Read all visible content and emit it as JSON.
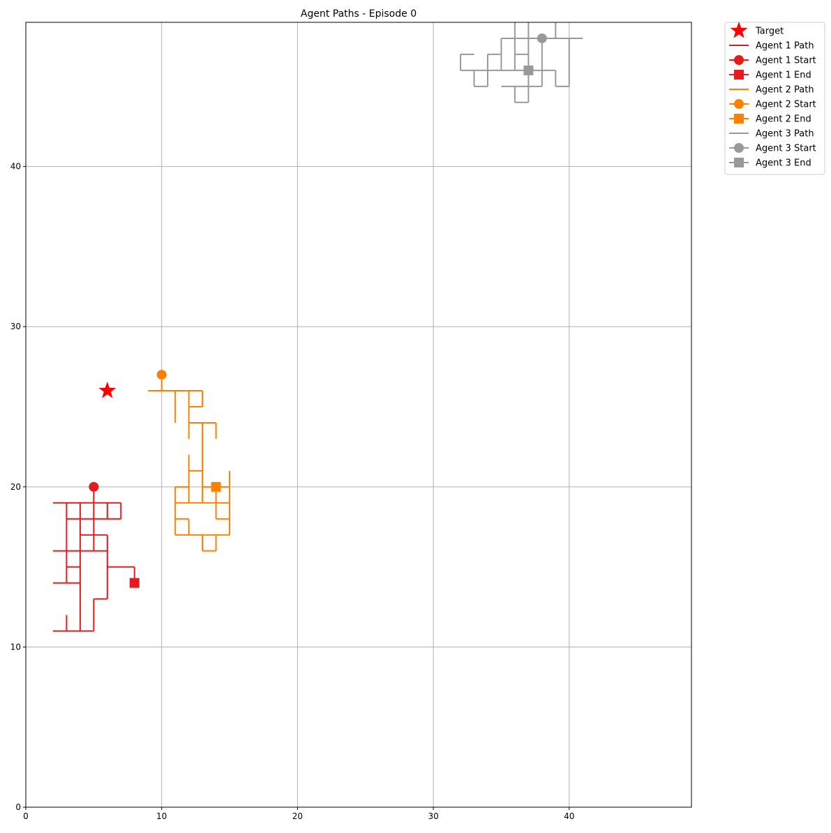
{
  "chart_data": {
    "type": "line",
    "title": "Agent Paths - Episode 0",
    "xlabel": "",
    "ylabel": "",
    "xlim": [
      0,
      49
    ],
    "ylim": [
      0,
      49
    ],
    "xticks": [
      0,
      10,
      20,
      30,
      40
    ],
    "yticks": [
      0,
      10,
      20,
      30,
      40
    ],
    "grid": true,
    "legend_position": "outside top-right",
    "target": {
      "label": "Target",
      "x": 6,
      "y": 26,
      "color": "#ff0000",
      "marker": "star"
    },
    "agents": [
      {
        "path_label": "Agent 1 Path",
        "start_label": "Agent 1 Start",
        "end_label": "Agent 1 End",
        "color": "#e41a1c",
        "start": [
          5,
          20
        ],
        "end": [
          8,
          14
        ],
        "segments": [
          [
            [
              5,
              20
            ],
            [
              5,
              19
            ]
          ],
          [
            [
              2,
              19
            ],
            [
              7,
              19
            ]
          ],
          [
            [
              7,
              19
            ],
            [
              7,
              18
            ]
          ],
          [
            [
              3,
              18
            ],
            [
              7,
              18
            ]
          ],
          [
            [
              3,
              19
            ],
            [
              3,
              14
            ]
          ],
          [
            [
              4,
              19
            ],
            [
              4,
              11
            ]
          ],
          [
            [
              5,
              19
            ],
            [
              5,
              16
            ]
          ],
          [
            [
              6,
              19
            ],
            [
              6,
              18
            ]
          ],
          [
            [
              4,
              17
            ],
            [
              6,
              17
            ]
          ],
          [
            [
              6,
              17
            ],
            [
              6,
              13
            ]
          ],
          [
            [
              2,
              16
            ],
            [
              6,
              16
            ]
          ],
          [
            [
              3,
              15
            ],
            [
              4,
              15
            ]
          ],
          [
            [
              6,
              15
            ],
            [
              8,
              15
            ]
          ],
          [
            [
              8,
              15
            ],
            [
              8,
              14
            ]
          ],
          [
            [
              2,
              14
            ],
            [
              4,
              14
            ]
          ],
          [
            [
              5,
              13
            ],
            [
              6,
              13
            ]
          ],
          [
            [
              5,
              13
            ],
            [
              5,
              11
            ]
          ],
          [
            [
              2,
              11
            ],
            [
              5,
              11
            ]
          ],
          [
            [
              3,
              12
            ],
            [
              3,
              11
            ]
          ]
        ]
      },
      {
        "path_label": "Agent 2 Path",
        "start_label": "Agent 2 Start",
        "end_label": "Agent 2 End",
        "color": "#ff7f00",
        "start": [
          10,
          27
        ],
        "end": [
          14,
          20
        ],
        "segments": [
          [
            [
              10,
              27
            ],
            [
              10,
              26
            ]
          ],
          [
            [
              9,
              26
            ],
            [
              13,
              26
            ]
          ],
          [
            [
              11,
              26
            ],
            [
              11,
              24
            ]
          ],
          [
            [
              12,
              26
            ],
            [
              12,
              23
            ]
          ],
          [
            [
              13,
              26
            ],
            [
              13,
              25
            ]
          ],
          [
            [
              12,
              25
            ],
            [
              13,
              25
            ]
          ],
          [
            [
              12,
              24
            ],
            [
              14,
              24
            ]
          ],
          [
            [
              13,
              24
            ],
            [
              13,
              19
            ]
          ],
          [
            [
              14,
              24
            ],
            [
              14,
              23
            ]
          ],
          [
            [
              12,
              22
            ],
            [
              12,
              19
            ]
          ],
          [
            [
              12,
              21
            ],
            [
              13,
              21
            ]
          ],
          [
            [
              11,
              20
            ],
            [
              12,
              20
            ]
          ],
          [
            [
              11,
              20
            ],
            [
              11,
              17
            ]
          ],
          [
            [
              13,
              20
            ],
            [
              15,
              20
            ]
          ],
          [
            [
              15,
              21
            ],
            [
              15,
              17
            ]
          ],
          [
            [
              11,
              19
            ],
            [
              15,
              19
            ]
          ],
          [
            [
              14,
              20
            ],
            [
              14,
              18
            ]
          ],
          [
            [
              14,
              18
            ],
            [
              15,
              18
            ]
          ],
          [
            [
              11,
              18
            ],
            [
              12,
              18
            ]
          ],
          [
            [
              12,
              18
            ],
            [
              12,
              17
            ]
          ],
          [
            [
              11,
              17
            ],
            [
              15,
              17
            ]
          ],
          [
            [
              13,
              17
            ],
            [
              13,
              16
            ]
          ],
          [
            [
              13,
              16
            ],
            [
              14,
              16
            ]
          ],
          [
            [
              14,
              16
            ],
            [
              14,
              17
            ]
          ]
        ]
      },
      {
        "path_label": "Agent 3 Path",
        "start_label": "Agent 3 Start",
        "end_label": "Agent 3 End",
        "color": "#999999",
        "start": [
          38,
          48
        ],
        "end": [
          37,
          46
        ],
        "segments": [
          [
            [
              36,
              49
            ],
            [
              36,
              46
            ]
          ],
          [
            [
              37,
              49
            ],
            [
              37,
              44
            ]
          ],
          [
            [
              39,
              49
            ],
            [
              39,
              48
            ]
          ],
          [
            [
              35,
              48
            ],
            [
              41,
              48
            ]
          ],
          [
            [
              35,
              48
            ],
            [
              35,
              46
            ]
          ],
          [
            [
              38,
              48
            ],
            [
              38,
              45
            ]
          ],
          [
            [
              40,
              48
            ],
            [
              40,
              45
            ]
          ],
          [
            [
              32,
              47
            ],
            [
              33,
              47
            ]
          ],
          [
            [
              32,
              47
            ],
            [
              32,
              46
            ]
          ],
          [
            [
              34,
              47
            ],
            [
              35,
              47
            ]
          ],
          [
            [
              36,
              47
            ],
            [
              37,
              47
            ]
          ],
          [
            [
              32,
              46
            ],
            [
              38,
              46
            ]
          ],
          [
            [
              33,
              46
            ],
            [
              33,
              45
            ]
          ],
          [
            [
              34,
              47
            ],
            [
              34,
              45
            ]
          ],
          [
            [
              33,
              45
            ],
            [
              34,
              45
            ]
          ],
          [
            [
              38,
              46
            ],
            [
              39,
              46
            ]
          ],
          [
            [
              39,
              46
            ],
            [
              39,
              45
            ]
          ],
          [
            [
              39,
              45
            ],
            [
              40,
              45
            ]
          ],
          [
            [
              35,
              45
            ],
            [
              38,
              45
            ]
          ],
          [
            [
              36,
              45
            ],
            [
              36,
              44
            ]
          ],
          [
            [
              36,
              44
            ],
            [
              37,
              44
            ]
          ]
        ]
      }
    ]
  }
}
